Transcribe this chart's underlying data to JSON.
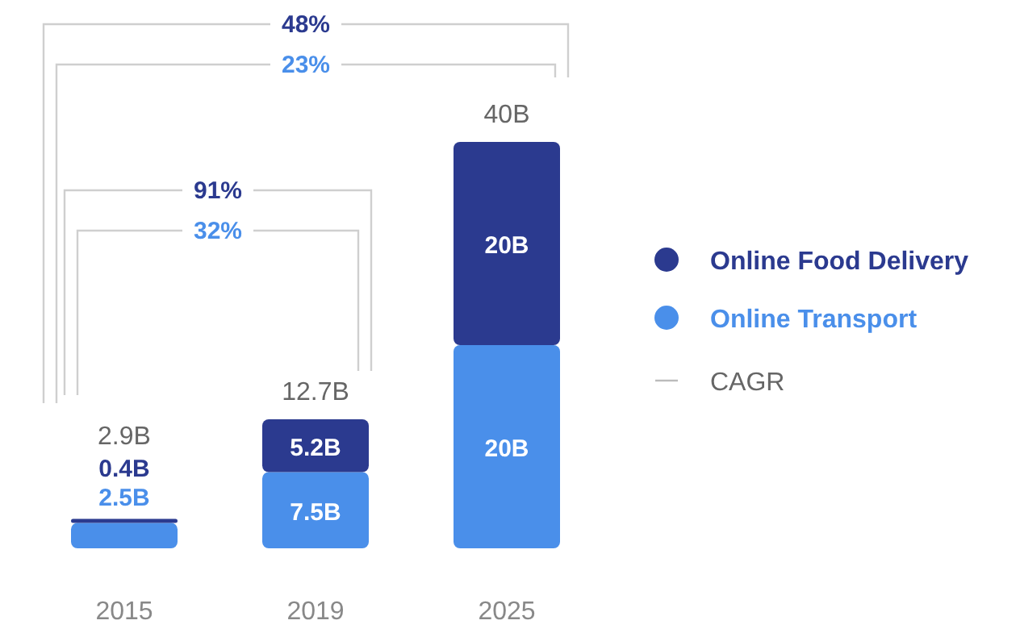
{
  "chart_data": {
    "type": "bar",
    "stacked": true,
    "categories": [
      "2015",
      "2019",
      "2025"
    ],
    "series": [
      {
        "name": "Online Transport",
        "color": "#4a8fea",
        "values": [
          2.5,
          7.5,
          20
        ],
        "value_labels": [
          "2.5B",
          "7.5B",
          "20B"
        ]
      },
      {
        "name": "Online Food Delivery",
        "color": "#2b3a8f",
        "values": [
          0.4,
          5.2,
          20
        ],
        "value_labels": [
          "0.4B",
          "5.2B",
          "20B"
        ]
      }
    ],
    "totals": [
      "2.9B",
      "12.7B",
      "40B"
    ],
    "annotations": [
      "91%",
      "32%",
      "48%",
      "23%",
      "CAGR"
    ],
    "legend": "right"
  }
}
